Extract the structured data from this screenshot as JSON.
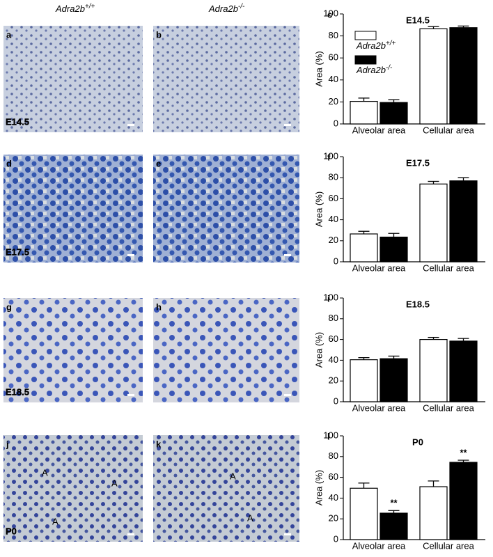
{
  "column_headers": [
    {
      "name": "Adra2b",
      "sup": "+/+"
    },
    {
      "name": "Adra2b",
      "sup": "-/-"
    }
  ],
  "image_panels": [
    {
      "label": "a",
      "stage": "E14.5"
    },
    {
      "label": "b"
    },
    {
      "label": "d",
      "stage": "E17.5"
    },
    {
      "label": "e"
    },
    {
      "label": "g",
      "stage": "E18.5"
    },
    {
      "label": "h"
    },
    {
      "label": "j",
      "stage": "P0",
      "region_labels": [
        "A",
        "A",
        "A"
      ]
    },
    {
      "label": "k",
      "region_labels": [
        "A",
        "A"
      ]
    }
  ],
  "chart_data": [
    {
      "type": "bar",
      "panel": "c",
      "title": "E14.5",
      "ylabel": "Area (%)",
      "categories": [
        "Alveolar area",
        "Cellular area"
      ],
      "ylim": [
        0,
        100
      ],
      "yticks": [
        0,
        20,
        40,
        60,
        80,
        100
      ],
      "legend": true,
      "series": [
        {
          "name": "Adra2b",
          "name_sup": "+/+",
          "color": "#ffffff",
          "values": [
            20.5,
            86.5
          ],
          "errors": [
            3,
            2
          ]
        },
        {
          "name": "Adra2b",
          "name_sup": "-/-",
          "color": "#000000",
          "values": [
            19.5,
            87.5
          ],
          "errors": [
            2.5,
            1.5
          ]
        }
      ]
    },
    {
      "type": "bar",
      "panel": "f",
      "title": "E17.5",
      "ylabel": "Area (%)",
      "categories": [
        "Alveolar area",
        "Cellular area"
      ],
      "ylim": [
        0,
        100
      ],
      "yticks": [
        0,
        20,
        40,
        60,
        80,
        100
      ],
      "series": [
        {
          "name": "Adra2b",
          "name_sup": "+/+",
          "color": "#ffffff",
          "values": [
            26.5,
            74
          ],
          "errors": [
            2.5,
            2.5
          ]
        },
        {
          "name": "Adra2b",
          "name_sup": "-/-",
          "color": "#000000",
          "values": [
            23.5,
            77
          ],
          "errors": [
            3.5,
            3
          ]
        }
      ]
    },
    {
      "type": "bar",
      "panel": "i",
      "title": "E18.5",
      "ylabel": "Area (%)",
      "categories": [
        "Alveolar area",
        "Cellular area"
      ],
      "ylim": [
        0,
        100
      ],
      "yticks": [
        0,
        20,
        40,
        60,
        80,
        100
      ],
      "series": [
        {
          "name": "Adra2b",
          "name_sup": "+/+",
          "color": "#ffffff",
          "values": [
            40.5,
            60
          ],
          "errors": [
            2,
            2
          ]
        },
        {
          "name": "Adra2b",
          "name_sup": "-/-",
          "color": "#000000",
          "values": [
            41.5,
            58.5
          ],
          "errors": [
            2.5,
            2.5
          ]
        }
      ]
    },
    {
      "type": "bar",
      "panel": "l",
      "title": "P0",
      "ylabel": "Area (%)",
      "categories": [
        "Alveolar area",
        "Cellular area"
      ],
      "ylim": [
        0,
        100
      ],
      "yticks": [
        0,
        20,
        40,
        60,
        80,
        100
      ],
      "series": [
        {
          "name": "Adra2b",
          "name_sup": "+/+",
          "color": "#ffffff",
          "values": [
            49.5,
            51
          ],
          "errors": [
            5,
            5.5
          ]
        },
        {
          "name": "Adra2b",
          "name_sup": "-/-",
          "color": "#000000",
          "values": [
            25.5,
            74.5
          ],
          "errors": [
            2.5,
            2
          ]
        }
      ],
      "annotations": [
        {
          "text": "**",
          "series": 1,
          "category": 0
        },
        {
          "text": "**",
          "series": 1,
          "category": 1
        }
      ]
    }
  ]
}
